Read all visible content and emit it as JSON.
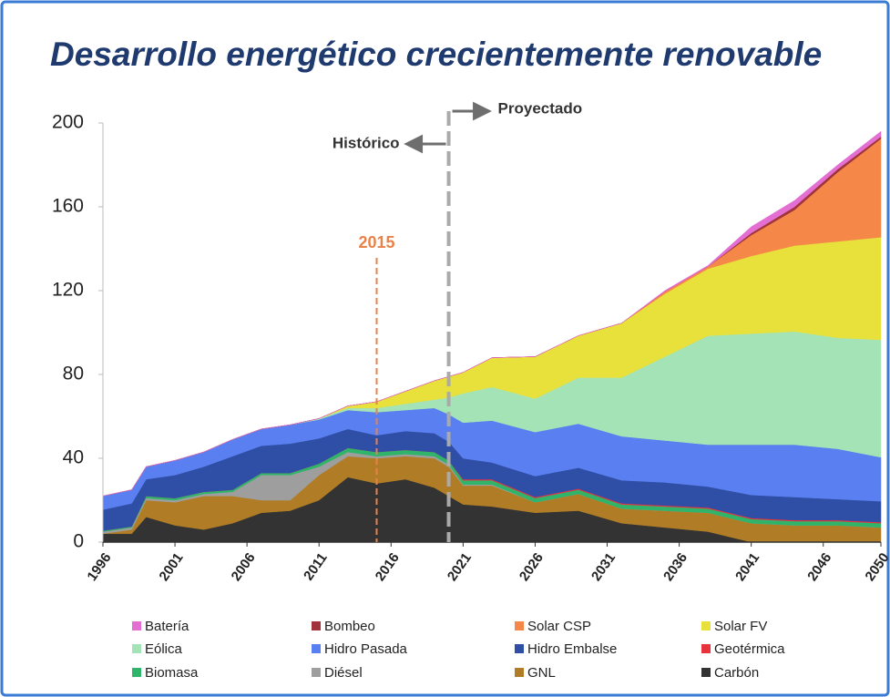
{
  "chart_data": {
    "type": "stacked_area",
    "title": "Desarrollo energético crecientemente renovable",
    "x": [
      1996,
      1998,
      1999,
      2001,
      2003,
      2005,
      2007,
      2009,
      2011,
      2013,
      2015,
      2017,
      2019,
      2020,
      2021,
      2023,
      2026,
      2029,
      2032,
      2035,
      2038,
      2041,
      2044,
      2047,
      2050
    ],
    "xlim": [
      1996,
      2050
    ],
    "xticks": [
      1996,
      2001,
      2006,
      2011,
      2016,
      2021,
      2026,
      2031,
      2036,
      2041,
      2046,
      2050
    ],
    "ylim": [
      0,
      200
    ],
    "yticks": [
      0,
      40,
      80,
      120,
      160,
      200
    ],
    "grid": false,
    "legend": "bottom",
    "annotations": [
      {
        "text": "2015",
        "x": 2015,
        "color": "#e8824a"
      },
      {
        "text": "Histórico",
        "x": 2020
      },
      {
        "text": "Proyectado",
        "x": 2020
      }
    ],
    "series": [
      {
        "name": "Carbón",
        "color": "#333333",
        "values": [
          4,
          4,
          12,
          8,
          6,
          9,
          14,
          15,
          20,
          31,
          28,
          30,
          26,
          22,
          18,
          17,
          14,
          15,
          9,
          7,
          5,
          0,
          0,
          0,
          0
        ]
      },
      {
        "name": "GNL",
        "color": "#b07c25",
        "values": [
          0,
          2,
          8,
          11,
          16,
          13,
          6,
          5,
          12,
          10,
          12,
          11,
          14,
          14,
          9,
          10,
          5,
          8,
          7,
          8,
          9,
          9,
          8,
          8,
          7
        ]
      },
      {
        "name": "Diésel",
        "color": "#9e9e9e",
        "values": [
          1,
          1,
          1,
          1,
          1,
          2,
          12,
          12,
          4,
          2,
          1,
          1,
          1,
          1,
          0.5,
          0.5,
          0,
          0,
          0,
          0,
          0,
          0,
          0,
          0,
          0
        ]
      },
      {
        "name": "Biomasa",
        "color": "#2fb46a",
        "values": [
          0.5,
          0.5,
          1,
          1,
          1,
          1,
          1,
          1,
          1.5,
          2,
          2,
          2,
          2,
          2,
          2,
          2,
          2,
          2,
          2,
          2,
          2,
          2,
          2,
          2,
          2
        ]
      },
      {
        "name": "Geotérmica",
        "color": "#e8323c",
        "values": [
          0,
          0,
          0,
          0,
          0,
          0,
          0,
          0,
          0,
          0,
          0,
          0,
          0,
          0,
          0.5,
          0.5,
          0.5,
          0.5,
          0.5,
          0.5,
          0.5,
          0.5,
          0.5,
          0.5,
          0.5
        ]
      },
      {
        "name": "Hidro Embalse",
        "color": "#2f4fa7",
        "values": [
          10,
          11,
          8,
          11,
          12,
          16,
          13,
          14,
          12,
          9,
          8,
          9,
          9,
          9,
          10,
          8,
          10,
          10,
          11,
          11,
          10,
          11,
          11,
          10,
          10
        ]
      },
      {
        "name": "Hidro Pasada",
        "color": "#5a7ff0",
        "values": [
          6.5,
          6.5,
          6,
          7,
          7,
          8,
          8,
          9,
          9,
          9,
          11,
          10,
          12,
          13,
          17,
          20,
          21,
          21,
          21,
          20,
          20,
          24,
          25,
          24,
          21
        ]
      },
      {
        "name": "Eólica",
        "color": "#a4e3b6",
        "values": [
          0,
          0,
          0,
          0,
          0,
          0,
          0,
          0,
          0.5,
          1,
          2,
          3,
          4,
          8,
          14,
          16,
          16,
          22,
          28,
          40,
          52,
          53,
          54,
          53,
          56
        ]
      },
      {
        "name": "Solar FV",
        "color": "#e8e13c",
        "values": [
          0,
          0,
          0,
          0,
          0,
          0,
          0,
          0,
          0,
          1,
          3,
          6,
          9,
          10,
          10,
          14,
          20,
          20,
          26,
          30,
          32,
          37,
          41,
          46,
          49
        ]
      },
      {
        "name": "Solar CSP",
        "color": "#f58848",
        "values": [
          0,
          0,
          0,
          0,
          0,
          0,
          0,
          0,
          0,
          0,
          0,
          0,
          0,
          0,
          0,
          0,
          0,
          0,
          0,
          1,
          1,
          10,
          17,
          33,
          47
        ]
      },
      {
        "name": "Bombeo",
        "color": "#a0343a",
        "values": [
          0,
          0,
          0,
          0,
          0,
          0,
          0,
          0,
          0,
          0,
          0,
          0,
          0,
          0,
          0,
          0,
          0,
          0,
          0,
          0,
          0,
          1,
          1.5,
          1.5,
          1
        ]
      },
      {
        "name": "Batería",
        "color": "#e36fd3",
        "values": [
          0,
          0,
          0,
          0,
          0,
          0,
          0,
          0,
          0,
          0,
          0,
          0,
          0,
          0,
          0,
          0,
          0,
          0,
          0,
          0.5,
          0.5,
          3,
          3,
          2,
          2.5
        ]
      }
    ],
    "legend_order": [
      11,
      10,
      9,
      8,
      7,
      6,
      5,
      4,
      3,
      2,
      1,
      0
    ]
  }
}
